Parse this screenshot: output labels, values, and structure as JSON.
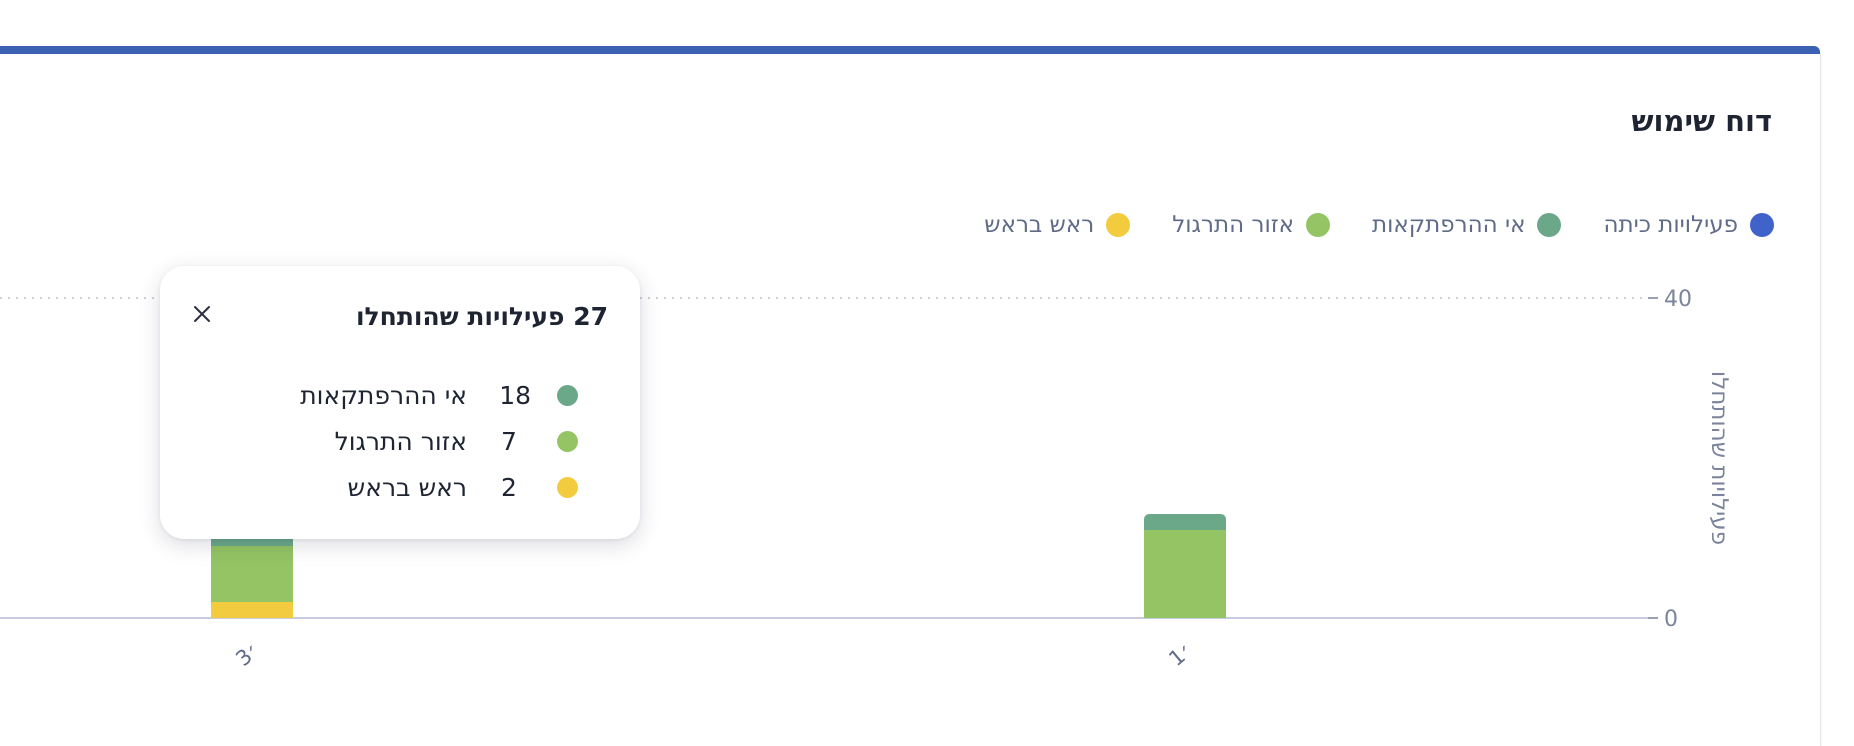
{
  "report": {
    "title": "דוח שימוש"
  },
  "colors": {
    "accent_bar": "#3b61b4"
  },
  "legend": [
    {
      "label": "פעילויות כיתה",
      "color": "#3f63c8"
    },
    {
      "label": "אי ההרפתקאות",
      "color": "#6aa889"
    },
    {
      "label": "אזור התרגול",
      "color": "#94c463"
    },
    {
      "label": "ראש בראש",
      "color": "#f2cc3e"
    }
  ],
  "chart_data": {
    "type": "bar",
    "stacked": true,
    "ylabel": "פעילויות שהותחלו",
    "ylim": [
      0,
      40
    ],
    "yticks": [
      "0",
      "40"
    ],
    "grid": true,
    "legend_position": "top",
    "categories": [
      "3׳",
      "1׳"
    ],
    "series": [
      {
        "name": "פעילויות כיתה",
        "color": "#3f63c8",
        "values": [
          0,
          0
        ]
      },
      {
        "name": "אי ההרפתקאות",
        "color": "#6aa889",
        "values": [
          18,
          2
        ]
      },
      {
        "name": "אזור התרגול",
        "color": "#94c463",
        "values": [
          7,
          11
        ]
      },
      {
        "name": "ראש בראש",
        "color": "#f2cc3e",
        "values": [
          2,
          0
        ]
      }
    ]
  },
  "tooltip": {
    "title": "27 פעילויות שהותחלו",
    "close_icon": "close-icon",
    "rows": [
      {
        "label": "אי ההרפתקאות",
        "value": "18",
        "color": "#6aa889"
      },
      {
        "label": "אזור התרגול",
        "value": "7",
        "color": "#94c463"
      },
      {
        "label": "ראש בראש",
        "value": "2",
        "color": "#f2cc3e"
      }
    ]
  }
}
